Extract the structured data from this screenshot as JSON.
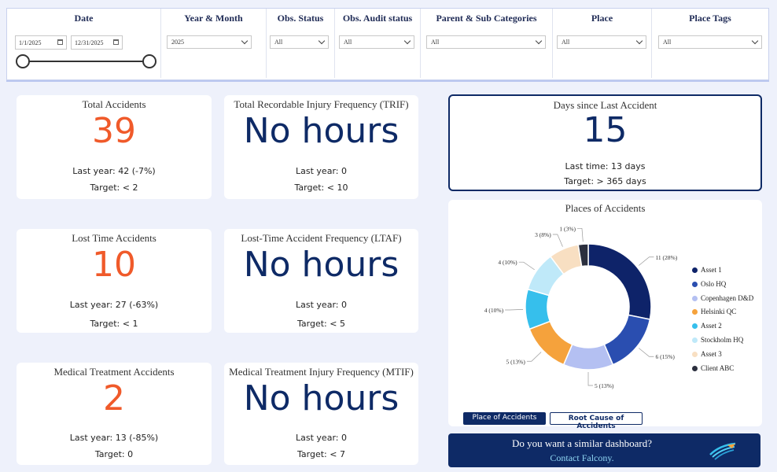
{
  "filters": {
    "date": {
      "title": "Date",
      "start": "1/1/2025",
      "end": "12/31/2025"
    },
    "year_month": {
      "title": "Year & Month",
      "value": "2025"
    },
    "obs_status": {
      "title": "Obs. Status",
      "value": "All"
    },
    "obs_audit_status": {
      "title": "Obs. Audit status",
      "value": "All"
    },
    "parent_sub_categories": {
      "title": "Parent & Sub Categories",
      "value": "All"
    },
    "place": {
      "title": "Place",
      "value": "All"
    },
    "place_tags": {
      "title": "Place Tags",
      "value": "All"
    }
  },
  "kpis": {
    "total_accidents": {
      "title": "Total Accidents",
      "value": "39",
      "last_year": "Last year: 42 (-7%)",
      "target": "Target: < 2"
    },
    "trif": {
      "title": "Total Recordable Injury Frequency (TRIF)",
      "value": "No hours",
      "last_year": "Last year: 0",
      "target": "Target: < 10"
    },
    "lost_time": {
      "title": "Lost Time Accidents",
      "value": "10",
      "last_year": "Last year: 27 (-63%)",
      "target": "Target: < 1"
    },
    "ltaf": {
      "title": "Lost-Time Accident Frequency (LTAF)",
      "value": "No hours",
      "last_year": "Last year: 0",
      "target": "Target: < 5"
    },
    "medical": {
      "title": "Medical Treatment Accidents",
      "value": "2",
      "last_year": "Last year: 13 (-85%)",
      "target": "Target: 0"
    },
    "mtif": {
      "title": "Medical Treatment Injury Frequency (MTIF)",
      "value": "No hours",
      "last_year": "Last year: 0",
      "target": "Target: < 7"
    },
    "days_since": {
      "title": "Days since Last Accident",
      "value": "15",
      "last_time": "Last time: 13 days",
      "target": "Target: > 365 days"
    }
  },
  "donut": {
    "title": "Places of Accidents",
    "tabs": {
      "place": "Place of Accidents",
      "root_cause": "Root Cause of Accidents"
    }
  },
  "chart_data": {
    "type": "pie",
    "title": "Places of Accidents",
    "categories": [
      "Asset 1",
      "Oslo HQ",
      "Copenhagen D&D",
      "Helsinki QC",
      "Asset 2",
      "Stockholm HQ",
      "Asset 3",
      "Client ABC"
    ],
    "values": [
      11,
      6,
      5,
      5,
      4,
      4,
      3,
      1
    ],
    "labels": [
      "11 (28%)",
      "6 (15%)",
      "5 (13%)",
      "5 (13%)",
      "4 (10%)",
      "4 (10%)",
      "3 (8%)",
      "1 (3%)"
    ],
    "colors": [
      "#0e2369",
      "#2a4eb0",
      "#b4c0f2",
      "#f5a23c",
      "#36bfec",
      "#bfe9f9",
      "#f8dfc2",
      "#2b2f3e"
    ],
    "legend": "right"
  },
  "cta": {
    "question": "Do you want a similar dashboard?",
    "contact": "Contact Falcony."
  }
}
